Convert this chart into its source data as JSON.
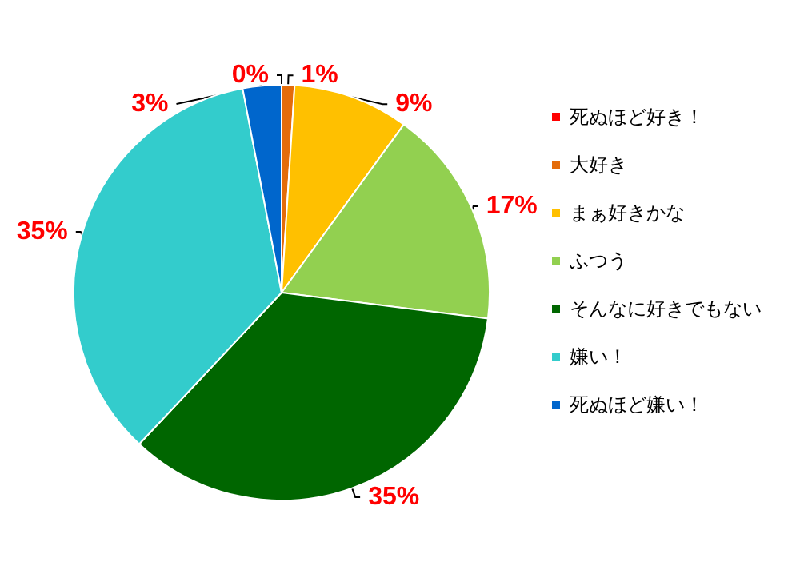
{
  "chart_data": {
    "type": "pie",
    "categories": [
      "死ぬほど好き！",
      "大好き",
      "まぁ好きかな",
      "ふつう",
      "そんなに好きでもない",
      "嫌い！",
      "死ぬほど嫌い！"
    ],
    "values": [
      0,
      1,
      9,
      17,
      35,
      35,
      3
    ],
    "value_labels": [
      "0%",
      "1%",
      "9%",
      "17%",
      "35%",
      "35%",
      "3%"
    ],
    "colors": [
      "#ff0000",
      "#e46c0a",
      "#ffc000",
      "#92d050",
      "#006600",
      "#33cccc",
      "#0066cc"
    ],
    "legend": "right"
  }
}
